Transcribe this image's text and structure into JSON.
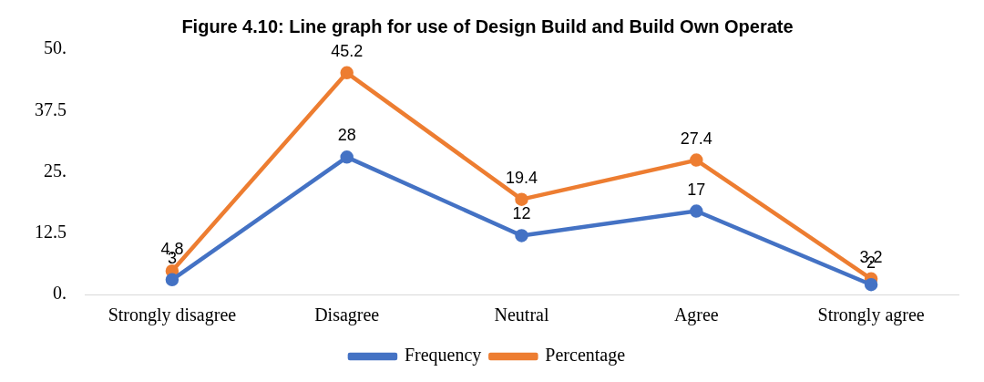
{
  "chart_data": {
    "type": "line",
    "title": "Figure 4.10: Line graph for use of Design Build and Build Own Operate",
    "categories": [
      "Strongly disagree",
      "Disagree",
      "Neutral",
      "Agree",
      "Strongly agree"
    ],
    "series": [
      {
        "name": "Frequency",
        "color": "#4472c4",
        "values": [
          3,
          28,
          12,
          17,
          2
        ]
      },
      {
        "name": "Percentage",
        "color": "#ed7d31",
        "values": [
          4.8,
          45.2,
          19.4,
          27.4,
          3.2
        ]
      }
    ],
    "ylim": [
      0,
      50
    ],
    "yticks": [
      {
        "value": 0,
        "label": "0."
      },
      {
        "value": 12.5,
        "label": "12.5"
      },
      {
        "value": 25,
        "label": "25."
      },
      {
        "value": 37.5,
        "label": "37.5"
      },
      {
        "value": 50,
        "label": "50."
      }
    ],
    "grid": false,
    "legend": "bottom",
    "marker": "circle",
    "line_style": "solid",
    "data_labels": true
  }
}
